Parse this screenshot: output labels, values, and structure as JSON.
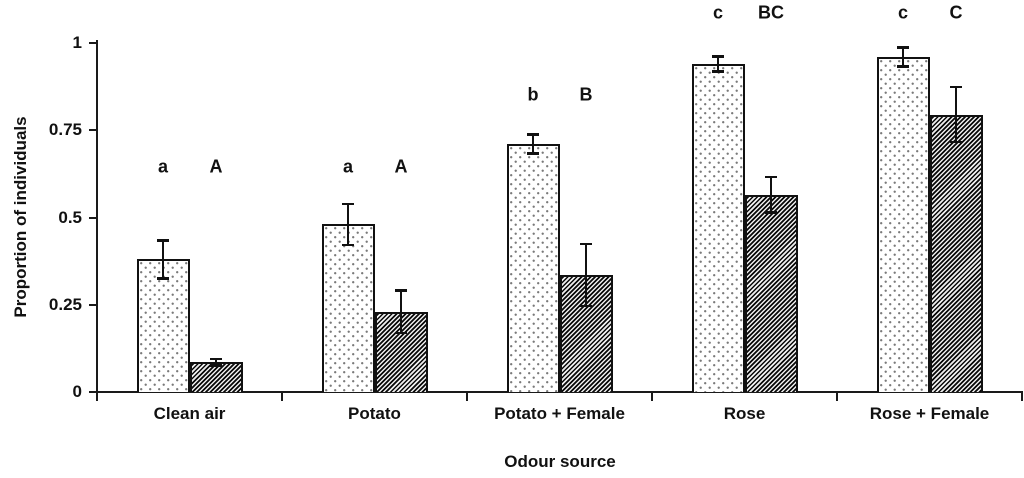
{
  "figure": {
    "background_color": "#ffffff",
    "text_color": "#111111"
  },
  "chart_data": {
    "type": "bar",
    "title": "",
    "xlabel": "Odour source",
    "ylabel": "Proportion of individuals",
    "categories": [
      "Clean air",
      "Potato",
      "Potato + Female",
      "Rose",
      "Rose + Female"
    ],
    "series": [
      {
        "name": "light-stippled-bars",
        "pattern": "stippled-dots",
        "values": [
          0.38,
          0.48,
          0.71,
          0.94,
          0.96
        ],
        "errors": [
          0.055,
          0.06,
          0.028,
          0.022,
          0.028
        ],
        "sig_letters": [
          "a",
          "a",
          "b",
          "c",
          "c"
        ]
      },
      {
        "name": "dark-hatched-bars",
        "pattern": "diagonal-hatch",
        "values": [
          0.085,
          0.23,
          0.335,
          0.565,
          0.795
        ],
        "errors": [
          0.01,
          0.062,
          0.09,
          0.052,
          0.08
        ],
        "sig_letters": [
          "A",
          "A",
          "B",
          "BC",
          "C"
        ]
      }
    ],
    "sig_letter_heights": [
      0.645,
      0.645,
      0.85,
      1.085,
      1.085
    ],
    "ylim": [
      0,
      1
    ],
    "yticks": [
      0,
      0.25,
      0.5,
      0.75,
      1
    ],
    "ytick_labels": [
      "0",
      "0.25",
      "0.5",
      "0.75",
      "1"
    ],
    "grid": false,
    "legend": "none",
    "error_bars": true
  }
}
